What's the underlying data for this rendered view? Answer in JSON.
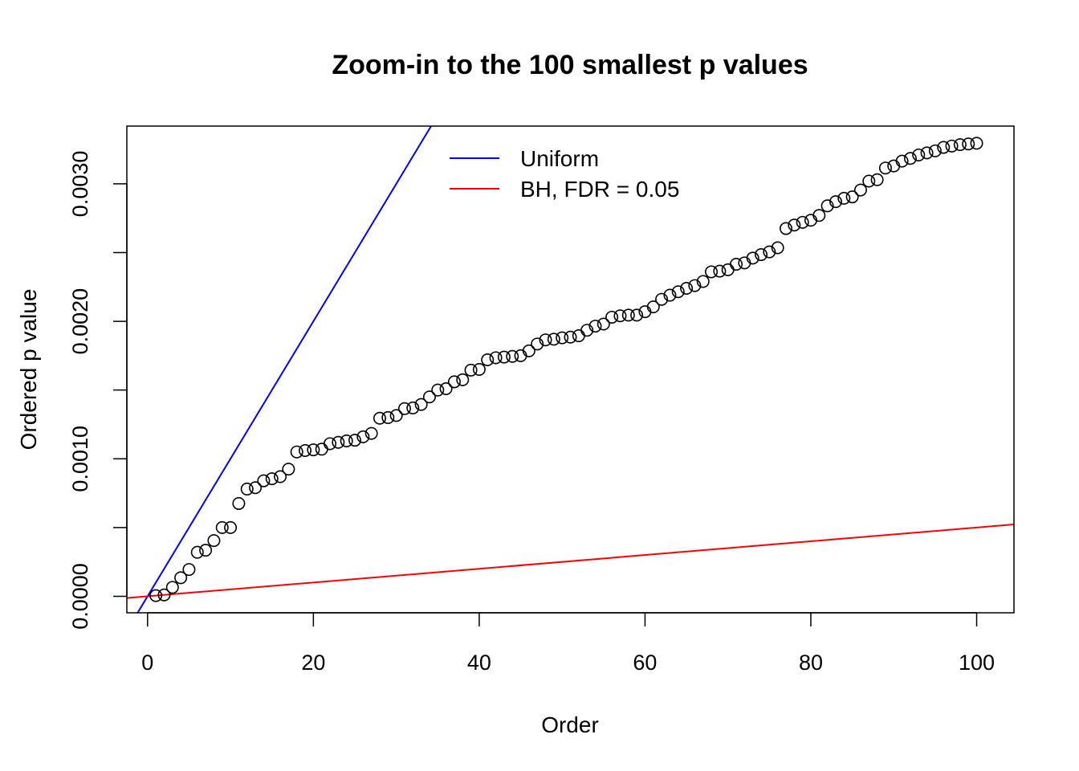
{
  "chart_data": {
    "type": "scatter",
    "title": "Zoom-in to the 100 smallest p values",
    "xlabel": "Order",
    "ylabel": "Ordered p value",
    "xlim": [
      -2.5,
      104.5
    ],
    "ylim": [
      -0.00012,
      0.00342
    ],
    "x_ticks": [
      0,
      20,
      40,
      60,
      80,
      100
    ],
    "x_tick_labels": [
      "0",
      "20",
      "40",
      "60",
      "80",
      "100"
    ],
    "y_ticks": [
      0.0,
      0.0005,
      0.001,
      0.0015,
      0.002,
      0.0025,
      0.003
    ],
    "y_tick_labels": [
      "0.0000",
      "",
      "0.0010",
      "",
      "0.0020",
      "",
      "0.0030"
    ],
    "grid": false,
    "legend": {
      "position": "top-center",
      "entries": [
        {
          "label": "Uniform",
          "color": "#0000ff"
        },
        {
          "label": "BH, FDR = 0.05",
          "color": "#ff0000"
        }
      ]
    },
    "series": [
      {
        "type": "points",
        "marker": "open-circle",
        "color": "#000000",
        "x": [
          1,
          2,
          3,
          4,
          5,
          6,
          7,
          8,
          9,
          10,
          11,
          12,
          13,
          14,
          15,
          16,
          17,
          18,
          19,
          20,
          21,
          22,
          23,
          24,
          25,
          26,
          27,
          28,
          29,
          30,
          31,
          32,
          33,
          34,
          35,
          36,
          37,
          38,
          39,
          40,
          41,
          42,
          43,
          44,
          45,
          46,
          47,
          48,
          49,
          50,
          51,
          52,
          53,
          54,
          55,
          56,
          57,
          58,
          59,
          60,
          61,
          62,
          63,
          64,
          65,
          66,
          67,
          68,
          69,
          70,
          71,
          72,
          73,
          74,
          75,
          76,
          77,
          78,
          79,
          80,
          81,
          82,
          83,
          84,
          85,
          86,
          87,
          88,
          89,
          90,
          91,
          92,
          93,
          94,
          95,
          96,
          97,
          98,
          99,
          100
        ],
        "y": [
          5e-06,
          1e-05,
          6.5e-05,
          0.000135,
          0.000195,
          0.00032,
          0.000335,
          0.000405,
          0.0005,
          0.0005,
          0.000675,
          0.00078,
          0.00079,
          0.00084,
          0.000855,
          0.00087,
          0.000925,
          0.00105,
          0.00106,
          0.001065,
          0.00107,
          0.00111,
          0.00112,
          0.00113,
          0.001135,
          0.00116,
          0.001185,
          0.001295,
          0.0013,
          0.001315,
          0.001365,
          0.00137,
          0.001395,
          0.00145,
          0.0015,
          0.00151,
          0.00156,
          0.001575,
          0.001645,
          0.00165,
          0.00172,
          0.001735,
          0.00174,
          0.001745,
          0.00175,
          0.001785,
          0.001835,
          0.001865,
          0.00187,
          0.00188,
          0.001885,
          0.001895,
          0.001935,
          0.001965,
          0.00198,
          0.00203,
          0.00204,
          0.002045,
          0.002045,
          0.00207,
          0.002105,
          0.00216,
          0.00219,
          0.002215,
          0.00224,
          0.00226,
          0.00229,
          0.00236,
          0.002365,
          0.002375,
          0.002415,
          0.002425,
          0.00246,
          0.002485,
          0.002505,
          0.002535,
          0.002675,
          0.0027,
          0.00272,
          0.002735,
          0.00277,
          0.00284,
          0.00287,
          0.002895,
          0.002905,
          0.002955,
          0.00302,
          0.00303,
          0.003115,
          0.00313,
          0.003165,
          0.003185,
          0.00321,
          0.003225,
          0.00324,
          0.003265,
          0.003275,
          0.003285,
          0.00329,
          0.003295
        ]
      },
      {
        "name": "Uniform",
        "type": "abline",
        "color": "#0000ff",
        "intercept": 0,
        "slope": 0.0001
      },
      {
        "name": "BH, FDR = 0.05",
        "type": "abline",
        "color": "#ff0000",
        "intercept": 0,
        "slope": 5e-06
      }
    ]
  }
}
